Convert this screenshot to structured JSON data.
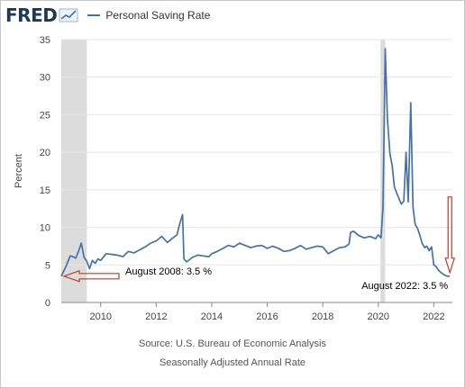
{
  "header": {
    "logo_text": "FRED",
    "logo_icon": "fred-chart-icon",
    "series_label": "Personal Saving Rate"
  },
  "chart_data": {
    "type": "line",
    "ylabel": "Percent",
    "ylim": [
      0,
      35
    ],
    "yticks": [
      0,
      5,
      10,
      15,
      20,
      25,
      30,
      35
    ],
    "xlim": [
      2008.58,
      2022.67
    ],
    "xticks": [
      "2010",
      "2012",
      "2014",
      "2016",
      "2018",
      "2020",
      "2022"
    ],
    "grid": "horizontal",
    "recessions": [
      {
        "start": 2008.58,
        "end": 2009.5
      },
      {
        "start": 2020.08,
        "end": 2020.25
      }
    ],
    "series": [
      {
        "name": "Personal Saving Rate",
        "color": "#4572a7",
        "x": [
          2008.58,
          2008.75,
          2008.9,
          2009.0,
          2009.1,
          2009.2,
          2009.3,
          2009.4,
          2009.5,
          2009.6,
          2009.7,
          2009.8,
          2009.9,
          2010.0,
          2010.2,
          2010.4,
          2010.6,
          2010.8,
          2011.0,
          2011.2,
          2011.4,
          2011.6,
          2011.8,
          2012.0,
          2012.2,
          2012.4,
          2012.6,
          2012.75,
          2012.85,
          2012.95,
          2013.0,
          2013.1,
          2013.3,
          2013.5,
          2013.7,
          2013.9,
          2014.0,
          2014.2,
          2014.4,
          2014.6,
          2014.8,
          2015.0,
          2015.2,
          2015.4,
          2015.6,
          2015.8,
          2016.0,
          2016.2,
          2016.4,
          2016.6,
          2016.8,
          2017.0,
          2017.2,
          2017.4,
          2017.6,
          2017.8,
          2018.0,
          2018.2,
          2018.4,
          2018.6,
          2018.8,
          2018.95,
          2019.0,
          2019.1,
          2019.3,
          2019.5,
          2019.7,
          2019.9,
          2020.0,
          2020.1,
          2020.17,
          2020.25,
          2020.33,
          2020.42,
          2020.5,
          2020.58,
          2020.67,
          2020.75,
          2020.83,
          2020.92,
          2021.0,
          2021.08,
          2021.17,
          2021.25,
          2021.33,
          2021.42,
          2021.5,
          2021.58,
          2021.67,
          2021.75,
          2021.83,
          2021.92,
          2022.0,
          2022.08,
          2022.17,
          2022.25,
          2022.33,
          2022.42,
          2022.5,
          2022.58
        ],
        "values": [
          3.5,
          4.8,
          6.2,
          6.1,
          5.9,
          6.8,
          7.9,
          6.0,
          5.5,
          4.5,
          5.6,
          5.2,
          5.8,
          5.6,
          6.5,
          6.4,
          6.3,
          6.1,
          6.8,
          6.6,
          7.0,
          7.4,
          7.9,
          8.2,
          8.8,
          8.0,
          8.6,
          9.0,
          10.5,
          11.7,
          5.8,
          5.4,
          6.0,
          6.3,
          6.2,
          6.1,
          6.5,
          6.8,
          7.2,
          7.6,
          7.4,
          7.9,
          7.6,
          7.3,
          7.5,
          7.6,
          7.2,
          7.5,
          7.2,
          6.8,
          6.9,
          7.2,
          7.6,
          7.1,
          7.3,
          7.5,
          7.4,
          6.5,
          6.9,
          7.3,
          7.4,
          7.8,
          9.3,
          9.5,
          8.9,
          8.6,
          8.8,
          8.5,
          9.0,
          8.6,
          12.7,
          33.8,
          24.5,
          19.8,
          18.2,
          15.4,
          14.5,
          13.8,
          13.1,
          13.5,
          20.0,
          13.4,
          26.6,
          12.7,
          10.4,
          9.8,
          8.9,
          7.9,
          7.3,
          7.5,
          6.9,
          7.4,
          5.0,
          4.8,
          4.3,
          4.0,
          3.8,
          3.6,
          3.5,
          3.5
        ]
      }
    ],
    "annotations": [
      {
        "text": "August 2008: 3.5 %",
        "x": 2008.58,
        "y": 3.5
      },
      {
        "text": "August 2022: 3.5 %",
        "x": 2022.58,
        "y": 3.5
      }
    ],
    "colors": {
      "line": "#4572a7",
      "recession": "#dcdcdc",
      "grid": "#e6e6e6",
      "arrow": "#c0392b"
    }
  },
  "footer": {
    "source": "Source: U.S. Bureau of Economic Analysis",
    "subtitle": "Seasonally Adjusted Annual Rate"
  }
}
